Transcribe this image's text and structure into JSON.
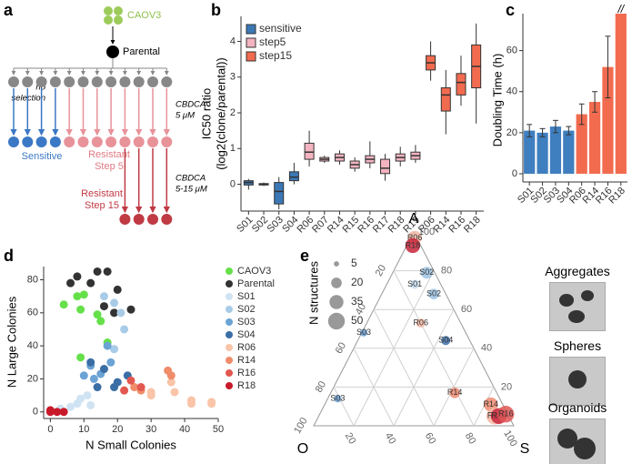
{
  "diagram": {
    "label": "a",
    "root": "CAOV3",
    "parent": "Parental",
    "no_selection": [
      "no",
      "selection"
    ],
    "dose1": [
      "CBDCA",
      "5 μM"
    ],
    "sensitive": "Sensitive",
    "step5": [
      "Resistant",
      "Step 5"
    ],
    "dose2": [
      "CBDCA",
      "5-15 μM"
    ],
    "step15": [
      "Resistant",
      "Step 15"
    ]
  },
  "images": [
    "Aggregates",
    "Spheres",
    "Organoids"
  ],
  "chart_data": [
    {
      "label": "b",
      "type": "box",
      "ylabel": [
        "IC50 ratio",
        "(log2(clone/parental))"
      ],
      "categories": [
        "S01",
        "S02",
        "S03",
        "S04",
        "R06",
        "R07",
        "R14",
        "R15",
        "R16",
        "R17",
        "R18",
        "R19",
        "R06",
        "R14",
        "R16",
        "R18"
      ],
      "series": [
        {
          "name": "sensitive",
          "color": "#3b78b5",
          "min": [
            -0.15,
            -0.05,
            -0.7,
            0
          ],
          "q1": [
            -0.02,
            -0.02,
            -0.55,
            0.1
          ],
          "median": [
            0.05,
            0,
            -0.2,
            0.2
          ],
          "q3": [
            0.1,
            0.02,
            0.05,
            0.35
          ],
          "max": [
            0.15,
            0.05,
            0.2,
            0.6
          ]
        },
        {
          "name": "step5",
          "color": "#f4b3c0",
          "min": [
            0.5,
            0.6,
            0.55,
            0.35,
            0.45,
            0.1,
            0.5,
            0.6
          ],
          "q1": [
            0.7,
            0.65,
            0.65,
            0.45,
            0.6,
            0.3,
            0.65,
            0.7
          ],
          "median": [
            0.9,
            0.7,
            0.75,
            0.55,
            0.7,
            0.45,
            0.75,
            0.8
          ],
          "q3": [
            1.15,
            0.75,
            0.85,
            0.65,
            0.8,
            0.7,
            0.85,
            0.9
          ],
          "max": [
            1.5,
            0.8,
            0.95,
            0.75,
            1.2,
            0.85,
            1.05,
            1.1
          ]
        },
        {
          "name": "step15",
          "color": "#f26b4f",
          "min": [
            2.9,
            1.4,
            2.2,
            1.7
          ],
          "q1": [
            3.2,
            2.05,
            2.5,
            2.7
          ],
          "median": [
            3.4,
            2.5,
            2.85,
            3.3
          ],
          "q3": [
            3.6,
            2.7,
            3.1,
            3.9
          ],
          "max": [
            4.0,
            3.2,
            3.6,
            4.5
          ]
        }
      ],
      "ylim": [
        -0.75,
        4.7
      ],
      "yticks": [
        0,
        1,
        2,
        3,
        4
      ],
      "legend": "top-left"
    },
    {
      "label": "c",
      "type": "bar",
      "ylabel": "Doubling Time (h)",
      "categories": [
        "S01",
        "S02",
        "S03",
        "S04",
        "R06",
        "R14",
        "R16",
        "R18"
      ],
      "values": [
        21,
        20,
        23,
        21,
        29,
        35,
        52,
        78
      ],
      "errors": [
        3,
        2,
        3,
        2,
        5,
        5,
        15,
        null
      ],
      "colors": [
        "#3f7fbf",
        "#3f7fbf",
        "#3f7fbf",
        "#3f7fbf",
        "#f26b4f",
        "#f26b4f",
        "#f26b4f",
        "#f26b4f"
      ],
      "ylim": [
        -4,
        78
      ],
      "yticks": [
        0,
        20,
        40,
        60
      ],
      "annotation": "//"
    },
    {
      "label": "d",
      "type": "scatter",
      "xlabel": "N Small Colonies",
      "ylabel": "N Large Colonies",
      "xlim": [
        -2,
        50
      ],
      "ylim": [
        -4,
        88
      ],
      "xticks": [
        0,
        10,
        20,
        30,
        40,
        50
      ],
      "yticks": [
        0,
        20,
        40,
        60,
        80
      ],
      "series": [
        {
          "name": "CAOV3",
          "color": "#66e04a",
          "x": [
            4,
            8,
            10,
            9,
            14,
            15,
            17,
            9
          ],
          "y": [
            65,
            70,
            71,
            62,
            59,
            55,
            42,
            33
          ]
        },
        {
          "name": "Parental",
          "color": "#333333",
          "x": [
            6,
            8,
            12,
            14,
            17,
            20,
            24,
            19,
            16
          ],
          "y": [
            78,
            82,
            78,
            85,
            85,
            74,
            62,
            60,
            64
          ]
        },
        {
          "name": "S01",
          "color": "#d0e3f3",
          "x": [
            8,
            9,
            11,
            6,
            12,
            3
          ],
          "y": [
            5,
            8,
            10,
            3,
            4,
            2
          ]
        },
        {
          "name": "S02",
          "color": "#a8cce8",
          "x": [
            16,
            19,
            21,
            19,
            22
          ],
          "y": [
            70,
            66,
            60,
            38,
            50
          ]
        },
        {
          "name": "S03",
          "color": "#6ba3d4",
          "x": [
            12,
            13,
            15,
            10,
            18,
            17
          ],
          "y": [
            28,
            20,
            23,
            22,
            30,
            40
          ]
        },
        {
          "name": "S04",
          "color": "#3a6ea5",
          "x": [
            12,
            14,
            19,
            20,
            16,
            23
          ],
          "y": [
            30,
            15,
            15,
            18,
            26,
            22
          ]
        },
        {
          "name": "R06",
          "color": "#f9c4a8",
          "x": [
            30,
            36,
            37,
            42,
            42,
            48,
            48,
            30
          ],
          "y": [
            10,
            18,
            12,
            5,
            7,
            6,
            5,
            12
          ]
        },
        {
          "name": "R14",
          "color": "#f08c6a",
          "x": [
            25,
            35,
            36,
            27
          ],
          "y": [
            15,
            25,
            22,
            13
          ]
        },
        {
          "name": "R16",
          "color": "#e25850",
          "x": [
            22,
            24,
            27
          ],
          "y": [
            13,
            19,
            15
          ]
        },
        {
          "name": "R18",
          "color": "#c81a2a",
          "x": [
            0,
            2,
            4,
            0
          ],
          "y": [
            0,
            0,
            0,
            1
          ]
        }
      ],
      "legend": "right"
    },
    {
      "label": "e",
      "type": "ternary",
      "axes": {
        "a": "A",
        "s": "S",
        "o": "O"
      },
      "ticks": [
        20,
        40,
        60,
        80,
        100
      ],
      "size_legend": {
        "title": "N structures",
        "sizes": [
          5,
          20,
          35,
          50
        ]
      },
      "colors": {
        "S01": "#c6dcef",
        "S02": "#9cc3e4",
        "S03": "#6a9fd0",
        "S04": "#3d6ea8",
        "R06": "#f5b9a5",
        "R14": "#ef8a6e",
        "R16": "#e05656",
        "R18": "#c8243a"
      },
      "points": [
        {
          "label": "R06",
          "a": 97,
          "s": 2,
          "o": 1,
          "n": 35
        },
        {
          "label": "R18",
          "a": 93,
          "s": 3,
          "o": 4,
          "n": 40
        },
        {
          "label": "S02",
          "a": 79,
          "s": 17,
          "o": 4,
          "n": 25
        },
        {
          "label": "S01",
          "a": 73,
          "s": 14,
          "o": 13,
          "n": 15
        },
        {
          "label": "S02",
          "a": 68,
          "s": 26,
          "o": 6,
          "n": 20
        },
        {
          "label": "R06",
          "a": 53,
          "s": 27,
          "o": 20,
          "n": 15
        },
        {
          "label": "S04",
          "a": 44,
          "s": 44,
          "o": 12,
          "n": 15
        },
        {
          "label": "S03",
          "a": 48,
          "s": 1,
          "o": 51,
          "n": 10
        },
        {
          "label": "S03",
          "a": 14,
          "s": 5,
          "o": 81,
          "n": 10
        },
        {
          "label": "R14",
          "a": 17,
          "s": 62,
          "o": 21,
          "n": 20
        },
        {
          "label": "R14",
          "a": 11,
          "s": 83,
          "o": 6,
          "n": 35
        },
        {
          "label": "R06",
          "a": 5,
          "s": 88,
          "o": 7,
          "n": 50
        },
        {
          "label": "R18",
          "a": 5,
          "s": 90,
          "o": 5,
          "n": 45
        },
        {
          "label": "R16",
          "a": 6,
          "s": 93,
          "o": 1,
          "n": 50
        }
      ]
    }
  ]
}
